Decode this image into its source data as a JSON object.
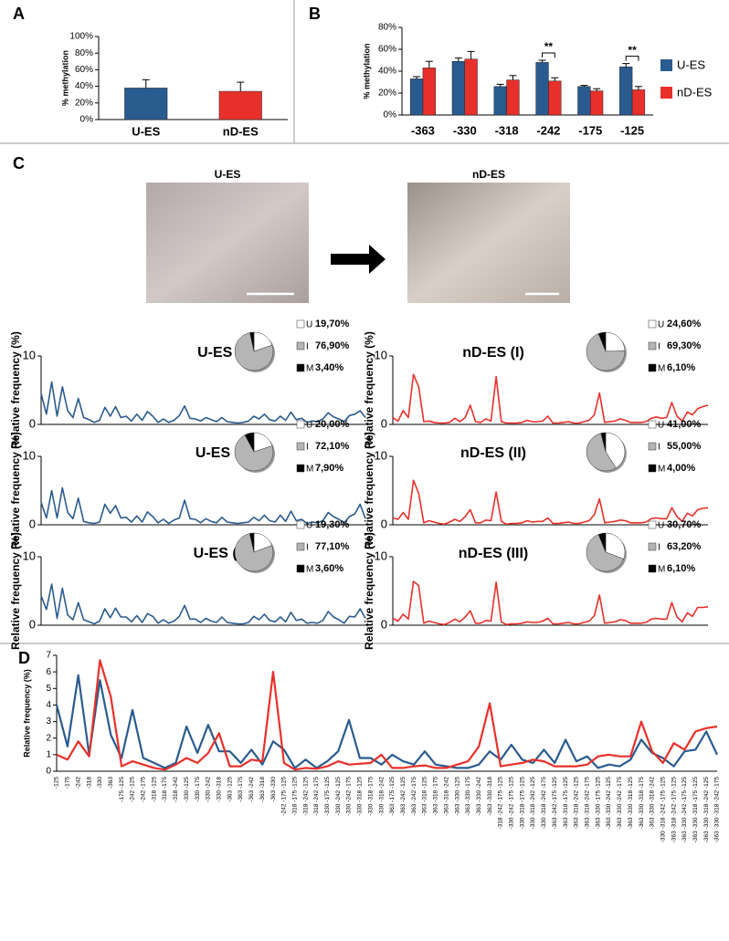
{
  "chart_data": [
    {
      "type": "bar",
      "panel": "A",
      "y_label": "% methylation",
      "categories": [
        "U-ES",
        "nD-ES"
      ],
      "values": [
        38,
        34
      ],
      "errors": [
        10,
        11
      ],
      "colors": [
        "#2a5b8f",
        "#e8302a"
      ],
      "ylim": [
        0,
        100
      ],
      "yticks": [
        {
          "value": 0,
          "label": "0%"
        },
        {
          "value": 20,
          "label": "20%"
        },
        {
          "value": 40,
          "label": "40%"
        },
        {
          "value": 60,
          "label": "60%"
        },
        {
          "value": 80,
          "label": "80%"
        },
        {
          "value": 100,
          "label": "100%"
        }
      ]
    },
    {
      "type": "grouped_bar",
      "panel": "B",
      "y_label": "% methylation",
      "categories": [
        "-363",
        "-330",
        "-318",
        "-242",
        "-175",
        "-125"
      ],
      "series": [
        {
          "name": "U-ES",
          "color": "#2a5b8f",
          "values": [
            33,
            49,
            26,
            48,
            26,
            44
          ],
          "errors": [
            2,
            3,
            2,
            2,
            1,
            3
          ]
        },
        {
          "name": "nD-ES",
          "color": "#e8302a",
          "values": [
            43,
            51,
            32,
            31,
            22,
            23
          ],
          "errors": [
            6,
            7,
            4,
            3,
            2,
            3
          ]
        }
      ],
      "ylim": [
        0,
        80
      ],
      "yticks": [
        {
          "value": 0,
          "label": "0%"
        },
        {
          "value": 20,
          "label": "20%"
        },
        {
          "value": 40,
          "label": "40%"
        },
        {
          "value": 60,
          "label": "60%"
        },
        {
          "value": 80,
          "label": "80%"
        }
      ],
      "legend": "right",
      "annotations": [
        {
          "text": "**",
          "category": "-242"
        },
        {
          "text": "**",
          "category": "-125"
        }
      ]
    },
    {
      "type": "line",
      "title": "U-ES (I)",
      "y_label": "Relative frequency (%)",
      "color": "#2a5b8f",
      "ylim": [
        0,
        10
      ],
      "yticks": [
        0,
        10
      ],
      "values": [
        4.5,
        1.5,
        6.2,
        1.2,
        5.5,
        2.0,
        1.0,
        3.8,
        1.0,
        0.7,
        0.3,
        0.6,
        2.5,
        1.2,
        2.6,
        1.0,
        1.2,
        0.5,
        1.5,
        0.6,
        1.9,
        1.2,
        0.3,
        0.8,
        0.3,
        0.6,
        1.3,
        2.7,
        0.9,
        0.8,
        0.5,
        1.0,
        0.7,
        0.4,
        1.0,
        0.4,
        0.3,
        0.2,
        0.3,
        0.5,
        1.2,
        0.8,
        1.5,
        0.7,
        0.5,
        1.2,
        0.6,
        1.8,
        0.7,
        0.9,
        0.3,
        0.5,
        0.4,
        0.8,
        1.7,
        1.1,
        0.8,
        0.4,
        1.3,
        1.5,
        2.0,
        1.0
      ],
      "pie": {
        "labels": [
          "U",
          "I",
          "M"
        ],
        "values": [
          19.7,
          76.9,
          3.4
        ],
        "value_labels": [
          "19,70%",
          "76,90%",
          "3,40%"
        ],
        "colors": [
          "#ffffff",
          "#b5b5b5",
          "#000000"
        ]
      }
    },
    {
      "type": "line",
      "title": "nD-ES (I)",
      "y_label": "Relative frequency (%)",
      "color": "#e8302a",
      "ylim": [
        0,
        10
      ],
      "yticks": [
        0,
        10
      ],
      "values": [
        1.0,
        0.5,
        2.0,
        1.0,
        7.3,
        5.5,
        0.4,
        0.5,
        0.3,
        0.2,
        0.2,
        0.3,
        0.9,
        0.4,
        1.0,
        2.8,
        0.4,
        0.3,
        0.8,
        0.5,
        7.0,
        0.4,
        0.2,
        0.2,
        0.2,
        0.3,
        0.6,
        0.4,
        0.4,
        0.5,
        1.2,
        0.2,
        0.2,
        0.3,
        0.4,
        0.2,
        0.2,
        0.4,
        0.6,
        1.4,
        4.6,
        0.3,
        0.4,
        0.5,
        0.8,
        0.6,
        0.3,
        0.3,
        0.3,
        0.4,
        0.9,
        1.1,
        0.9,
        1.0,
        3.2,
        1.2,
        0.5,
        1.8,
        1.4,
        2.3,
        2.6,
        2.8
      ],
      "pie": {
        "labels": [
          "U",
          "I",
          "M"
        ],
        "values": [
          24.6,
          69.3,
          6.1
        ],
        "value_labels": [
          "24,60%",
          "69,30%",
          "6,10%"
        ],
        "colors": [
          "#ffffff",
          "#b5b5b5",
          "#000000"
        ]
      }
    },
    {
      "type": "line",
      "title": "U-ES (II)",
      "y_label": "Relative frequency (%)",
      "color": "#2a5b8f",
      "ylim": [
        0,
        10
      ],
      "yticks": [
        0,
        10
      ],
      "values": [
        3.3,
        1.0,
        5.0,
        1.0,
        5.4,
        1.8,
        0.9,
        3.9,
        0.5,
        0.3,
        0.2,
        0.4,
        3.0,
        1.7,
        2.8,
        1.0,
        1.1,
        0.4,
        1.3,
        0.4,
        1.9,
        1.2,
        0.3,
        0.8,
        0.2,
        0.7,
        1.0,
        3.6,
        0.9,
        0.8,
        0.3,
        0.9,
        0.5,
        0.3,
        1.1,
        0.4,
        0.3,
        0.2,
        0.3,
        0.4,
        1.1,
        0.6,
        1.4,
        0.6,
        0.4,
        1.4,
        0.5,
        2.0,
        0.6,
        0.8,
        0.2,
        0.4,
        0.3,
        0.6,
        1.8,
        1.2,
        0.8,
        0.3,
        1.2,
        1.6,
        3.0,
        0.9
      ],
      "pie": {
        "labels": [
          "U",
          "I",
          "M"
        ],
        "values": [
          20.0,
          72.1,
          7.9
        ],
        "value_labels": [
          "20,00%",
          "72,10%",
          "7,90%"
        ],
        "colors": [
          "#ffffff",
          "#b5b5b5",
          "#000000"
        ]
      }
    },
    {
      "type": "line",
      "title": "nD-ES (II)",
      "y_label": "Relative frequency (%)",
      "color": "#e8302a",
      "ylim": [
        0,
        10
      ],
      "yticks": [
        0,
        10
      ],
      "values": [
        1.0,
        0.8,
        1.8,
        0.8,
        6.5,
        4.6,
        0.3,
        0.6,
        0.4,
        0.2,
        0.1,
        0.4,
        0.8,
        0.5,
        1.2,
        2.2,
        0.3,
        0.3,
        0.7,
        0.6,
        4.8,
        0.5,
        0.1,
        0.2,
        0.2,
        0.3,
        0.6,
        0.4,
        0.5,
        0.5,
        1.0,
        0.2,
        0.2,
        0.3,
        0.4,
        0.2,
        0.2,
        0.4,
        0.6,
        1.5,
        3.8,
        0.3,
        0.4,
        0.5,
        0.7,
        0.6,
        0.3,
        0.3,
        0.3,
        0.4,
        0.9,
        1.0,
        0.9,
        0.9,
        2.5,
        1.2,
        0.5,
        1.7,
        1.3,
        2.2,
        2.4,
        2.5
      ],
      "pie": {
        "labels": [
          "U",
          "I",
          "M"
        ],
        "values": [
          41.0,
          55.0,
          4.0
        ],
        "value_labels": [
          "41,00%",
          "55,00%",
          "4,00%"
        ],
        "colors": [
          "#ffffff",
          "#b5b5b5",
          "#000000"
        ]
      }
    },
    {
      "type": "line",
      "title": "U-ES (III)",
      "y_label": "Relative frequency (%)",
      "color": "#2a5b8f",
      "ylim": [
        0,
        10
      ],
      "yticks": [
        0,
        10
      ],
      "values": [
        4.3,
        2.3,
        6.0,
        1.0,
        5.4,
        1.5,
        0.8,
        3.3,
        0.8,
        0.5,
        0.2,
        0.6,
        2.4,
        1.1,
        2.5,
        1.2,
        1.2,
        0.5,
        1.4,
        0.4,
        1.7,
        1.3,
        0.3,
        0.8,
        0.3,
        0.6,
        1.3,
        2.9,
        0.9,
        0.9,
        0.4,
        1.0,
        0.6,
        0.4,
        1.2,
        0.4,
        0.3,
        0.2,
        0.2,
        0.4,
        1.3,
        0.8,
        1.6,
        0.7,
        0.5,
        1.2,
        0.5,
        1.9,
        0.7,
        0.9,
        0.3,
        0.4,
        0.3,
        0.7,
        2.0,
        1.2,
        0.8,
        0.3,
        1.3,
        1.2,
        2.4,
        1.0
      ],
      "pie": {
        "labels": [
          "U",
          "I",
          "M"
        ],
        "values": [
          19.3,
          77.1,
          3.6
        ],
        "value_labels": [
          "19,30%",
          "77,10%",
          "3,60%"
        ],
        "colors": [
          "#ffffff",
          "#b5b5b5",
          "#000000"
        ]
      }
    },
    {
      "type": "line",
      "title": "nD-ES (III)",
      "y_label": "Relative frequency (%)",
      "color": "#e8302a",
      "ylim": [
        0,
        10
      ],
      "yticks": [
        0,
        10
      ],
      "values": [
        1.0,
        0.6,
        1.6,
        0.9,
        6.4,
        5.8,
        0.3,
        0.6,
        0.4,
        0.2,
        0.1,
        0.4,
        0.9,
        0.5,
        1.2,
        2.1,
        0.3,
        0.3,
        0.7,
        0.6,
        6.3,
        0.5,
        0.1,
        0.2,
        0.2,
        0.3,
        0.5,
        0.4,
        0.4,
        0.6,
        1.0,
        0.2,
        0.2,
        0.3,
        0.4,
        0.2,
        0.2,
        0.4,
        0.6,
        1.4,
        4.4,
        0.3,
        0.4,
        0.5,
        0.8,
        0.7,
        0.3,
        0.3,
        0.3,
        0.4,
        0.9,
        1.0,
        0.9,
        0.9,
        3.3,
        1.2,
        0.5,
        1.8,
        1.3,
        2.6,
        2.6,
        2.7
      ],
      "pie": {
        "labels": [
          "U",
          "I",
          "M"
        ],
        "values": [
          30.7,
          63.2,
          6.1
        ],
        "value_labels": [
          "30,70%",
          "63,20%",
          "6,10%"
        ],
        "colors": [
          "#ffffff",
          "#b5b5b5",
          "#000000"
        ]
      }
    },
    {
      "type": "line",
      "panel": "D",
      "y_label": "Relative frequency (%)",
      "ylim": [
        0,
        7
      ],
      "yticks": [
        0,
        1,
        2,
        3,
        4,
        5,
        6,
        7
      ],
      "categories": [
        "-125",
        "-175",
        "-242",
        "-318",
        "-330",
        "-363",
        "-175 -125",
        "-242 -125",
        "-242 -175",
        "-318 -125",
        "-318 -175",
        "-318 -242",
        "-330 -125",
        "-330 -175",
        "-330 -242",
        "-330 -318",
        "-363 -125",
        "-363 -175",
        "-363 -242",
        "-363 -318",
        "-363 -330",
        "-242 -175 -125",
        "-318 -175 -125",
        "-318 -242 -125",
        "-318 -242 -175",
        "-330 -175 -125",
        "-330 -242 -125",
        "-330 -242 -175",
        "-330 -318 -125",
        "-330 -318 -175",
        "-330 -318 -242",
        "-363 -175 -125",
        "-363 -242 -125",
        "-363 -242 -175",
        "-363 -318 -125",
        "-363 -318 -175",
        "-363 -318 -242",
        "-363 -330 -125",
        "-363 -330 -175",
        "-363 -330 -242",
        "-363 -330 -318",
        "-318 -242 -175 -125",
        "-330 -242 -175 -125",
        "-330 -318 -175 -125",
        "-330 -318 -242 -125",
        "-330 -318 -242 -175",
        "-363 -242 -175 -125",
        "-363 -318 -175 -125",
        "-363 -318 -242 -125",
        "-363 -318 -242 -175",
        "-363 -330 -175 -125",
        "-363 -330 -242 -125",
        "-363 -330 -242 -175",
        "-363 -330 -318 -125",
        "-363 -330 -318 -175",
        "-363 -330 -318 -242",
        "-330 -318 -242 -175 -125",
        "-363 -318 -242 -175 -125",
        "-363 -330 -242 -175 -125",
        "-363 -330 -318 -175 -125",
        "-363 -330 -318 -242 -125",
        "-363 -330 -318 -242 -175"
      ],
      "series": [
        {
          "name": "U-ES",
          "color": "#2a5b8f",
          "values": [
            4.0,
            1.5,
            5.8,
            1.0,
            5.5,
            2.2,
            0.8,
            3.7,
            0.8,
            0.5,
            0.2,
            0.5,
            2.7,
            1.1,
            2.8,
            1.2,
            1.2,
            0.5,
            1.3,
            0.4,
            1.8,
            1.3,
            0.2,
            0.7,
            0.2,
            0.6,
            1.2,
            3.1,
            0.8,
            0.8,
            0.4,
            1.0,
            0.6,
            0.4,
            1.2,
            0.4,
            0.3,
            0.2,
            0.2,
            0.4,
            1.2,
            0.7,
            1.6,
            0.7,
            0.5,
            1.3,
            0.5,
            1.9,
            0.6,
            0.9,
            0.2,
            0.4,
            0.3,
            0.7,
            1.9,
            1.1,
            0.8,
            0.3,
            1.2,
            1.3,
            2.4,
            1.0
          ]
        },
        {
          "name": "nD-ES",
          "color": "#e8302a",
          "values": [
            1.0,
            0.7,
            1.8,
            0.9,
            6.7,
            4.5,
            0.3,
            0.6,
            0.4,
            0.2,
            0.1,
            0.4,
            0.8,
            0.5,
            1.1,
            2.3,
            0.3,
            0.3,
            0.7,
            0.6,
            6.0,
            0.5,
            0.1,
            0.2,
            0.15,
            0.3,
            0.6,
            0.4,
            0.45,
            0.5,
            1.0,
            0.2,
            0.2,
            0.3,
            0.35,
            0.2,
            0.2,
            0.4,
            0.6,
            1.5,
            4.1,
            0.3,
            0.4,
            0.5,
            0.7,
            0.6,
            0.3,
            0.3,
            0.3,
            0.4,
            0.9,
            1.0,
            0.9,
            0.9,
            3.0,
            1.2,
            0.5,
            1.7,
            1.3,
            2.4,
            2.6,
            2.7
          ]
        }
      ]
    }
  ],
  "photos": {
    "panel": "C",
    "labels": [
      "U-ES",
      "nD-ES"
    ]
  }
}
